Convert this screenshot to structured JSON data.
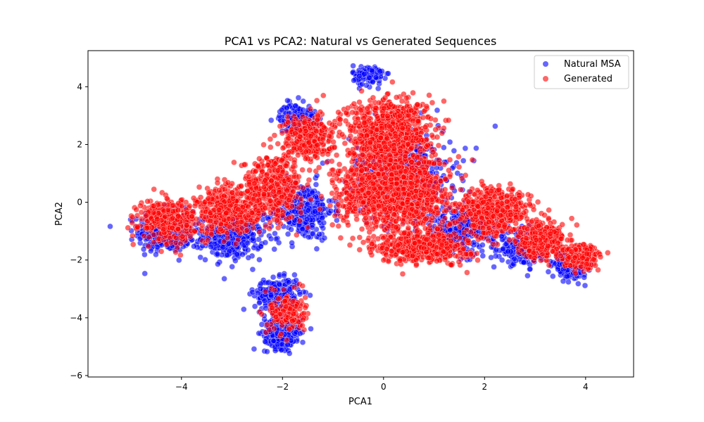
{
  "chart_data": {
    "type": "scatter",
    "title": "PCA1 vs PCA2: Natural vs Generated Sequences",
    "xlabel": "PCA1",
    "ylabel": "PCA2",
    "xlim": [
      -5.85,
      4.95
    ],
    "ylim": [
      -6.05,
      5.25
    ],
    "xticks": [
      -4,
      -2,
      0,
      2,
      4
    ],
    "yticks": [
      -6,
      -4,
      -2,
      0,
      2,
      4
    ],
    "xtick_labels": [
      "−4",
      "−2",
      "0",
      "2",
      "4"
    ],
    "ytick_labels": [
      "−6",
      "−4",
      "−2",
      "0",
      "2",
      "4"
    ],
    "grid": false,
    "legend_position": "top-right",
    "series": [
      {
        "name": "Natural MSA",
        "color": "#0000ff",
        "alpha": 0.6,
        "marker": "circle",
        "regions": [
          {
            "center": [
              -4.3,
              -1.0
            ],
            "spread": [
              0.55,
              0.7
            ],
            "n": 400
          },
          {
            "center": [
              -3.0,
              -1.2
            ],
            "spread": [
              0.6,
              0.75
            ],
            "n": 350
          },
          {
            "center": [
              -1.6,
              -0.3
            ],
            "spread": [
              0.6,
              1.0
            ],
            "n": 300
          },
          {
            "center": [
              -2.0,
              -4.5
            ],
            "spread": [
              0.35,
              0.55
            ],
            "n": 320
          },
          {
            "center": [
              -2.1,
              -3.2
            ],
            "spread": [
              0.45,
              0.55
            ],
            "n": 250
          },
          {
            "center": [
              -1.7,
              2.9
            ],
            "spread": [
              0.35,
              0.5
            ],
            "n": 180
          },
          {
            "center": [
              -0.3,
              4.4
            ],
            "spread": [
              0.3,
              0.35
            ],
            "n": 120
          },
          {
            "center": [
              0.4,
              1.0
            ],
            "spread": [
              1.0,
              1.5
            ],
            "n": 500
          },
          {
            "center": [
              1.5,
              -1.0
            ],
            "spread": [
              0.8,
              0.8
            ],
            "n": 300
          },
          {
            "center": [
              3.7,
              -2.2
            ],
            "spread": [
              0.35,
              0.4
            ],
            "n": 260
          },
          {
            "center": [
              2.8,
              -1.6
            ],
            "spread": [
              0.5,
              0.55
            ],
            "n": 250
          }
        ]
      },
      {
        "name": "Generated",
        "color": "#ff0000",
        "alpha": 0.6,
        "marker": "circle",
        "regions": [
          {
            "center": [
              -4.3,
              -0.6
            ],
            "spread": [
              0.55,
              0.7
            ],
            "n": 350
          },
          {
            "center": [
              -3.1,
              -0.3
            ],
            "spread": [
              0.6,
              0.8
            ],
            "n": 400
          },
          {
            "center": [
              -2.2,
              0.5
            ],
            "spread": [
              0.6,
              1.1
            ],
            "n": 400
          },
          {
            "center": [
              -1.5,
              2.2
            ],
            "spread": [
              0.5,
              0.8
            ],
            "n": 300
          },
          {
            "center": [
              -1.9,
              -3.8
            ],
            "spread": [
              0.35,
              0.7
            ],
            "n": 150
          },
          {
            "center": [
              0.1,
              2.4
            ],
            "spread": [
              0.8,
              1.2
            ],
            "n": 900
          },
          {
            "center": [
              0.2,
              0.3
            ],
            "spread": [
              1.1,
              1.2
            ],
            "n": 1100
          },
          {
            "center": [
              0.8,
              -1.5
            ],
            "spread": [
              0.9,
              0.6
            ],
            "n": 500
          },
          {
            "center": [
              2.2,
              -0.3
            ],
            "spread": [
              0.7,
              0.8
            ],
            "n": 500
          },
          {
            "center": [
              3.1,
              -1.3
            ],
            "spread": [
              0.45,
              0.6
            ],
            "n": 350
          },
          {
            "center": [
              3.9,
              -1.9
            ],
            "spread": [
              0.35,
              0.4
            ],
            "n": 250
          }
        ]
      }
    ]
  }
}
